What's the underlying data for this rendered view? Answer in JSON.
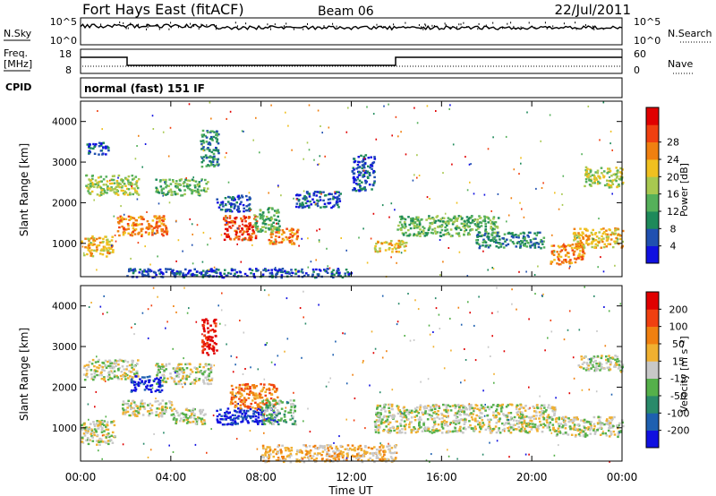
{
  "header": {
    "station": "Fort Hays East (fitACF)",
    "beam": "Beam 06",
    "date": "22/Jul/2011"
  },
  "panels": {
    "noise": {
      "left_label": "N.Sky",
      "right_label": "N.Search",
      "left_ticks": [
        "10^5",
        "10^0"
      ],
      "right_ticks": [
        "10^5",
        "10^0"
      ]
    },
    "freq": {
      "left_label": "Freq.",
      "left_unit": "[MHz]",
      "right_label": "Nave",
      "left_ticks": [
        "18",
        "8"
      ],
      "right_ticks": [
        "60",
        "0"
      ]
    },
    "cpid": {
      "label": "CPID",
      "text": "normal (fast) 151 IF"
    }
  },
  "chart_data": [
    {
      "type": "heatmap",
      "name": "power",
      "ylabel": "Slant Range [km]",
      "ylim": [
        180,
        4500
      ],
      "yticks": [
        "1000",
        "2000",
        "3000",
        "4000"
      ],
      "colorbar_label": "Power [dB]",
      "colorbar_ticks": [
        "4",
        "8",
        "12",
        "16",
        "20",
        "24",
        "28"
      ],
      "colorbar_colors": [
        "#1010e0",
        "#2050b0",
        "#1e8a5a",
        "#55b05a",
        "#a8c850",
        "#f0c020",
        "#f08010",
        "#f04010",
        "#e00000"
      ],
      "regions": [
        {
          "t0": 0.0,
          "t1": 1.4,
          "r0": 700,
          "r1": 1200,
          "level": 5
        },
        {
          "t0": 1.6,
          "t1": 3.8,
          "r0": 1200,
          "r1": 1700,
          "level": 6
        },
        {
          "t0": 0.2,
          "t1": 2.6,
          "r0": 2200,
          "r1": 2700,
          "level": 4
        },
        {
          "t0": 3.3,
          "t1": 5.6,
          "r0": 2200,
          "r1": 2600,
          "level": 3
        },
        {
          "t0": 0.2,
          "t1": 1.2,
          "r0": 3200,
          "r1": 3500,
          "level": 1
        },
        {
          "t0": 5.3,
          "t1": 6.1,
          "r0": 2900,
          "r1": 3800,
          "level": 2
        },
        {
          "t0": 6.3,
          "t1": 7.8,
          "r0": 1100,
          "r1": 1700,
          "level": 7
        },
        {
          "t0": 8.3,
          "t1": 9.6,
          "r0": 1000,
          "r1": 1400,
          "level": 6
        },
        {
          "t0": 7.6,
          "t1": 8.8,
          "r0": 1300,
          "r1": 1900,
          "level": 3
        },
        {
          "t0": 6.0,
          "t1": 7.5,
          "r0": 1800,
          "r1": 2200,
          "level": 1
        },
        {
          "t0": 13.0,
          "t1": 14.4,
          "r0": 800,
          "r1": 1100,
          "level": 5
        },
        {
          "t0": 14.0,
          "t1": 18.5,
          "r0": 1200,
          "r1": 1700,
          "level": 3
        },
        {
          "t0": 17.5,
          "t1": 20.5,
          "r0": 900,
          "r1": 1300,
          "level": 2
        },
        {
          "t0": 20.8,
          "t1": 22.3,
          "r0": 500,
          "r1": 1000,
          "level": 6
        },
        {
          "t0": 21.8,
          "t1": 24.0,
          "r0": 900,
          "r1": 1400,
          "level": 5
        },
        {
          "t0": 22.3,
          "t1": 24.0,
          "r0": 2400,
          "r1": 2900,
          "level": 4
        },
        {
          "t0": 12.0,
          "t1": 13.0,
          "r0": 2300,
          "r1": 3200,
          "level": 1
        },
        {
          "t0": 9.5,
          "t1": 11.5,
          "r0": 1900,
          "r1": 2300,
          "level": 1
        },
        {
          "t0": 2.0,
          "t1": 12.0,
          "r0": 180,
          "r1": 400,
          "level": 1
        }
      ]
    },
    {
      "type": "heatmap",
      "name": "velocity",
      "ylabel": "Slant Range [km]",
      "ylim": [
        180,
        4500
      ],
      "yticks": [
        "1000",
        "2000",
        "3000",
        "4000"
      ],
      "colorbar_label": "Velocity [m s⁻¹]",
      "colorbar_ticks": [
        "200",
        "100",
        "50",
        "15",
        "-15",
        "-50",
        "-100",
        "-200"
      ],
      "colorbar_colors": [
        "#1010e0",
        "#1e60b0",
        "#2a8a6a",
        "#55b04a",
        "#c8c8c8",
        "#f0b030",
        "#f08010",
        "#f04010",
        "#e00000"
      ],
      "regions": [
        {
          "t0": 0.1,
          "t1": 2.5,
          "r0": 2200,
          "r1": 2700,
          "level": 4
        },
        {
          "t0": 3.3,
          "t1": 5.8,
          "r0": 2100,
          "r1": 2600,
          "level": 4
        },
        {
          "t0": 1.8,
          "t1": 4.0,
          "r0": 1300,
          "r1": 1700,
          "level": 4
        },
        {
          "t0": 0.0,
          "t1": 1.5,
          "r0": 600,
          "r1": 1200,
          "level": 4
        },
        {
          "t0": 2.2,
          "t1": 3.6,
          "r0": 1900,
          "r1": 2300,
          "level": 0
        },
        {
          "t0": 5.3,
          "t1": 6.0,
          "r0": 2800,
          "r1": 3700,
          "level": 8
        },
        {
          "t0": 6.0,
          "t1": 8.7,
          "r0": 1100,
          "r1": 1500,
          "level": 0
        },
        {
          "t0": 6.6,
          "t1": 8.7,
          "r0": 1500,
          "r1": 2100,
          "level": 6
        },
        {
          "t0": 8.0,
          "t1": 9.5,
          "r0": 1100,
          "r1": 1700,
          "level": 3
        },
        {
          "t0": 4.0,
          "t1": 5.5,
          "r0": 1100,
          "r1": 1500,
          "level": 4
        },
        {
          "t0": 8.0,
          "t1": 14.0,
          "r0": 180,
          "r1": 600,
          "level": 5
        },
        {
          "t0": 13.0,
          "t1": 21.0,
          "r0": 900,
          "r1": 1600,
          "level": 4
        },
        {
          "t0": 21.0,
          "t1": 24.0,
          "r0": 800,
          "r1": 1300,
          "level": 4
        },
        {
          "t0": 22.0,
          "t1": 24.0,
          "r0": 2400,
          "r1": 2800,
          "level": 4
        }
      ]
    }
  ],
  "time_axis": {
    "label": "Time UT",
    "ticks": [
      "00:00",
      "04:00",
      "08:00",
      "12:00",
      "16:00",
      "20:00",
      "00:00"
    ]
  }
}
